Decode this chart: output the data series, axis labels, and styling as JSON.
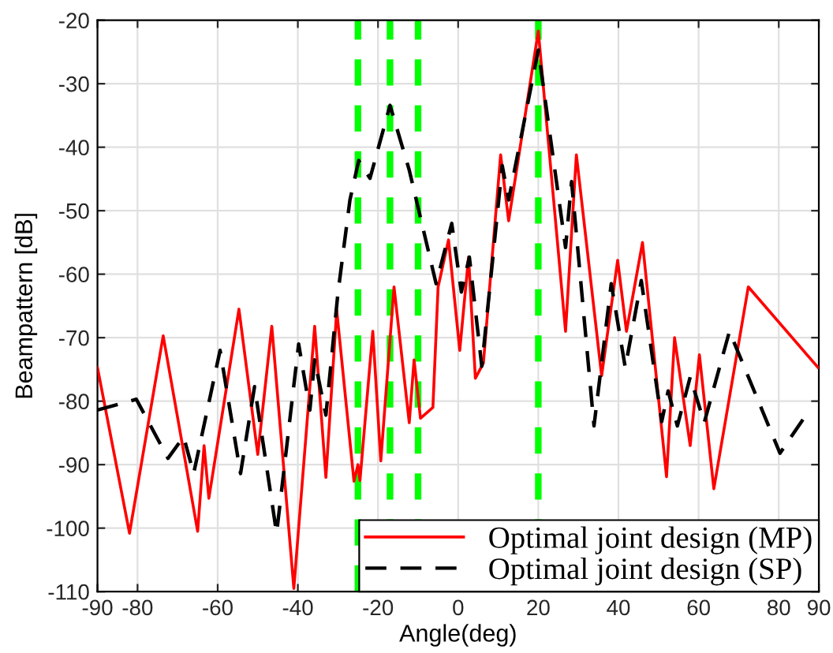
{
  "chart_data": {
    "type": "line",
    "xlabel": "Angle(deg)",
    "ylabel": "Beampattern [dB]",
    "xlim": [
      -90,
      90
    ],
    "xticks": [
      -90,
      -80,
      -60,
      -40,
      -20,
      0,
      20,
      40,
      60,
      80,
      90
    ],
    "ylim": [
      -110,
      -20
    ],
    "yticks": [
      -110,
      -100,
      -90,
      -80,
      -70,
      -60,
      -50,
      -40,
      -30,
      -20
    ],
    "grid": true,
    "legend": "bottom right",
    "marker": "none",
    "series": [
      {
        "name": "Optimal joint design (MP)",
        "color": "#ff0000",
        "line_style": "solid",
        "x": [
          -90,
          -82,
          -73.6,
          -65,
          -63.4,
          -62.2,
          -54.7,
          -50,
          -46.5,
          -41,
          -35.8,
          -33,
          -30.3,
          -26,
          -25,
          -24.5,
          -21.3,
          -19.3,
          -16,
          -12.2,
          -11,
          -9.4,
          -6.3,
          -5,
          -2.4,
          0.4,
          2.6,
          4.3,
          6.3,
          10.6,
          12.6,
          20,
          26.8,
          29.5,
          35.8,
          39.8,
          42,
          46,
          52,
          54,
          57.9,
          60.2,
          63.8,
          72.4,
          89.8
        ],
        "values": [
          -74.7,
          -100.8,
          -69.7,
          -100.5,
          -87,
          -95.3,
          -65.5,
          -88.4,
          -68.2,
          -109.5,
          -68.2,
          -92,
          -65.7,
          -92.6,
          -90,
          -92.5,
          -69,
          -89.4,
          -62,
          -83.4,
          -73.5,
          -82.7,
          -81,
          -62,
          -54.6,
          -72,
          -57.3,
          -76.4,
          -74,
          -41.2,
          -51.6,
          -21.7,
          -69,
          -41.2,
          -76,
          -57.8,
          -69,
          -55,
          -91.9,
          -70,
          -87,
          -72.7,
          -93.8,
          -62,
          -74.7
        ]
      },
      {
        "name": "Optimal joint design (SP)",
        "color": "#000000",
        "line_style": "dashed",
        "x": [
          -90,
          -80.3,
          -72.4,
          -68.5,
          -66,
          -59.4,
          -54.3,
          -50.8,
          -45.3,
          -39.8,
          -37,
          -35.8,
          -33,
          -30,
          -27,
          -24.8,
          -22,
          -17,
          -12.2,
          -5.5,
          -1.6,
          0.8,
          2.8,
          5.9,
          11,
          12.6,
          20,
          26.8,
          28.3,
          33.9,
          38.2,
          41.7,
          45.7,
          50.8,
          52.4,
          54.7,
          57.9,
          61.4,
          67.7,
          80.3,
          87
        ],
        "values": [
          -81.4,
          -79.7,
          -89,
          -85.6,
          -91.4,
          -72,
          -91.4,
          -77.7,
          -100.8,
          -71,
          -81.4,
          -73.5,
          -82.2,
          -63,
          -48.3,
          -42.1,
          -44.9,
          -33.4,
          -43.6,
          -61.5,
          -52,
          -62.8,
          -57.3,
          -74.5,
          -42.9,
          -48.3,
          -24.7,
          -55.8,
          -45.4,
          -83.9,
          -61.5,
          -74.7,
          -61,
          -83.2,
          -78.4,
          -83.9,
          -76.2,
          -83.4,
          -69,
          -88.2,
          -82
        ]
      }
    ],
    "ref_lines": [
      {
        "axis": "x",
        "value": -25,
        "color": "#00ff00",
        "line_style": "dashed"
      },
      {
        "axis": "x",
        "value": -17,
        "color": "#00ff00",
        "line_style": "dashed"
      },
      {
        "axis": "x",
        "value": -10,
        "color": "#00ff00",
        "line_style": "dashed"
      },
      {
        "axis": "x",
        "value": 20,
        "color": "#00ff00",
        "line_style": "dashed"
      }
    ]
  }
}
